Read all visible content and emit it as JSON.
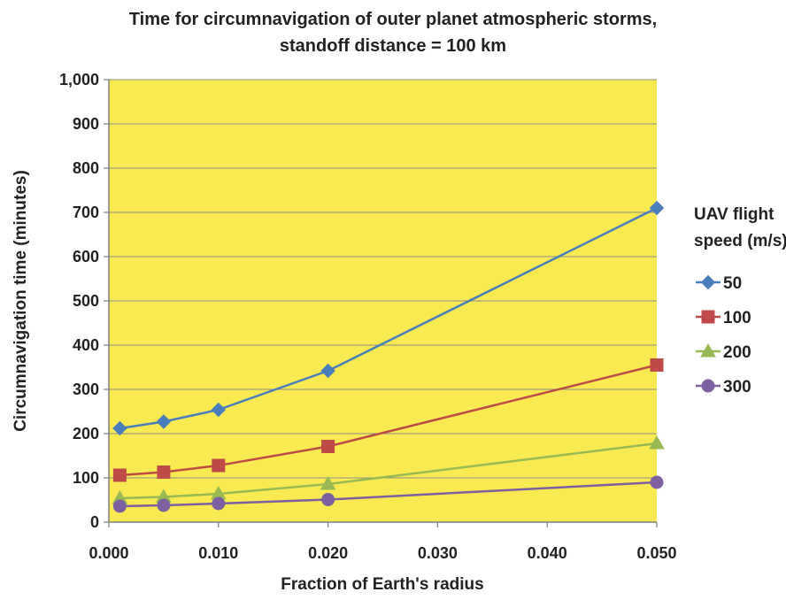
{
  "chart_data": {
    "type": "line",
    "title": "Time for circumnavigation of outer planet atmospheric storms,",
    "subtitle": "standoff distance = 100 km",
    "xlabel": "Fraction of Earth's radius",
    "ylabel": "Circumnavigation time (minutes)",
    "xlim": [
      0.0,
      0.05
    ],
    "ylim": [
      0,
      1000
    ],
    "x_ticks": [
      0.0,
      0.01,
      0.02,
      0.03,
      0.04,
      0.05
    ],
    "x_tick_labels": [
      "0.000",
      "0.010",
      "0.020",
      "0.030",
      "0.040",
      "0.050"
    ],
    "y_ticks": [
      0,
      100,
      200,
      300,
      400,
      500,
      600,
      700,
      800,
      900,
      1000
    ],
    "y_tick_labels": [
      "0",
      "100",
      "200",
      "300",
      "400",
      "500",
      "600",
      "700",
      "800",
      "900",
      "1,000"
    ],
    "grid": "horizontal",
    "plot_background": "#FAEA52",
    "legend_title_line1": "UAV flight",
    "legend_title_line2": "speed (m/s)",
    "legend_position": "right",
    "x": [
      0.001,
      0.005,
      0.01,
      0.02,
      0.05
    ],
    "series": [
      {
        "name": "50",
        "marker": "diamond",
        "color": "#4A7EBB",
        "values": [
          212,
          227,
          254,
          342,
          710
        ]
      },
      {
        "name": "100",
        "marker": "square",
        "color": "#BE4B48",
        "values": [
          106,
          113,
          128,
          171,
          355
        ]
      },
      {
        "name": "200",
        "marker": "triangle",
        "color": "#98B954",
        "values": [
          54,
          57,
          64,
          86,
          178
        ]
      },
      {
        "name": "300",
        "marker": "circle",
        "color": "#7D60A0",
        "values": [
          36,
          38,
          42,
          51,
          90
        ]
      }
    ]
  }
}
